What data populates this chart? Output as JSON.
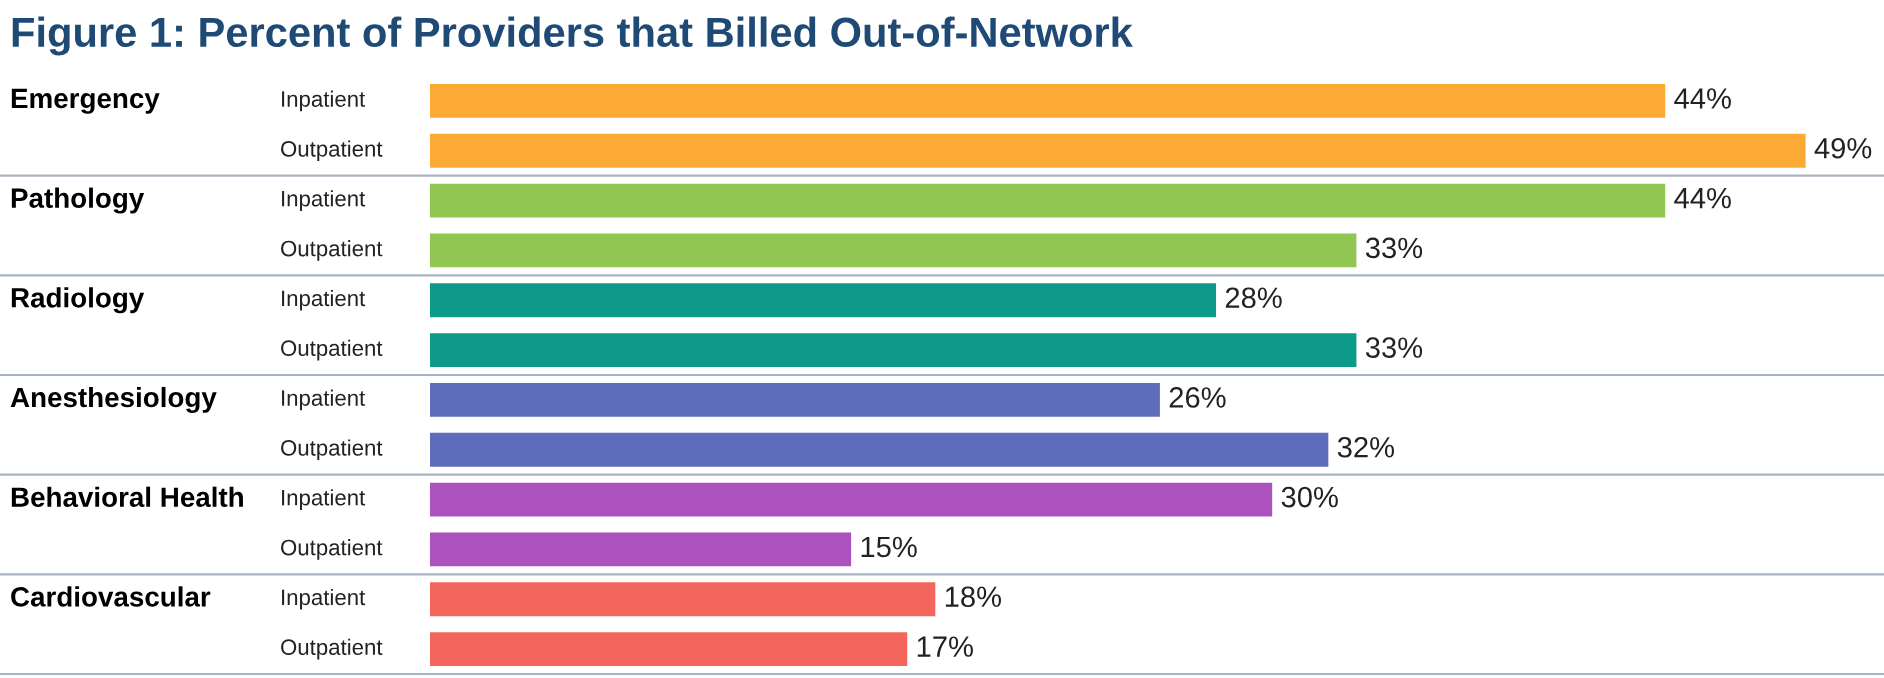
{
  "chart_data": {
    "type": "bar",
    "orientation": "horizontal",
    "title": "Figure 1: Percent of Providers that Billed Out-of-Network",
    "categories": [
      "Inpatient",
      "Outpatient",
      "Inpatient",
      "Outpatient",
      "Inpatient",
      "Outpatient",
      "Inpatient",
      "Outpatient",
      "Inpatient",
      "Outpatient",
      "Inpatient",
      "Outpatient"
    ],
    "values": [
      44,
      49,
      44,
      33,
      28,
      33,
      26,
      32,
      30,
      15,
      18,
      17
    ],
    "value_labels": [
      "44%",
      "49%",
      "44%",
      "33%",
      "28%",
      "33%",
      "26%",
      "32%",
      "30%",
      "15%",
      "18%",
      "17%"
    ],
    "colors": [
      "#fbab35",
      "#fbab35",
      "#92c653",
      "#92c653",
      "#0e9a8b",
      "#0e9a8b",
      "#5f6dbd",
      "#5f6dbd",
      "#ab52be",
      "#ab52be",
      "#f4665d",
      "#f4665d"
    ],
    "annotations": [
      "Emergency",
      "Pathology",
      "Radiology",
      "Anesthesiology",
      "Behavioral Health",
      "Cardiovascular"
    ],
    "tick_labels": false
  }
}
